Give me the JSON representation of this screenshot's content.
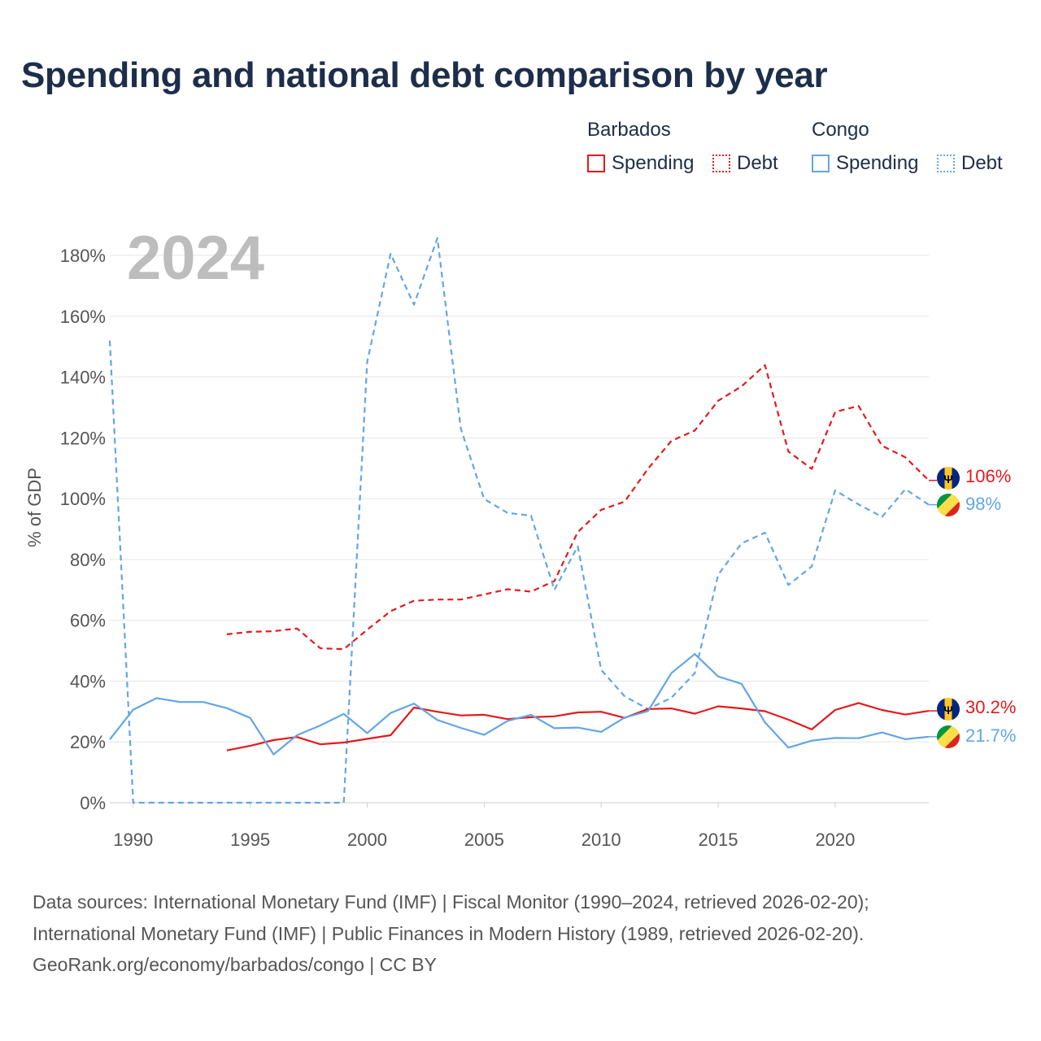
{
  "title": "Spending and national debt comparison by year",
  "year_watermark": "2024",
  "legend": {
    "groups": [
      {
        "country": "Barbados",
        "color": "#e31a1c",
        "items": [
          "Spending",
          "Debt"
        ]
      },
      {
        "country": "Congo",
        "color": "#62a6e6",
        "items": [
          "Spending",
          "Debt"
        ]
      }
    ]
  },
  "end_labels": {
    "barbados_debt": "106%",
    "congo_debt": "98%",
    "barbados_spending": "30.2%",
    "congo_spending": "21.7%"
  },
  "sources": [
    "Data sources: International Monetary Fund (IMF) | Fiscal Monitor (1990–2024, retrieved 2026-02-20);",
    "International Monetary Fund (IMF) | Public Finances in Modern History (1989, retrieved 2026-02-20).",
    "GeoRank.org/economy/barbados/congo | CC BY"
  ],
  "chart_data": {
    "type": "line",
    "title": "Spending and national debt comparison by year",
    "xlabel": "",
    "ylabel": "% of GDP",
    "xlim": [
      1989,
      2024
    ],
    "ylim": [
      0,
      180
    ],
    "x_ticks": [
      1990,
      1995,
      2000,
      2005,
      2010,
      2015,
      2020
    ],
    "y_ticks": [
      0,
      20,
      40,
      60,
      80,
      100,
      120,
      140,
      160,
      180
    ],
    "y_tick_labels": [
      "0%",
      "20%",
      "40%",
      "60%",
      "80%",
      "100%",
      "120%",
      "140%",
      "160%",
      "180%"
    ],
    "grid": true,
    "series": [
      {
        "name": "Barbados Debt",
        "country": "Barbados",
        "kind": "Debt",
        "color": "#e31a1c",
        "dashed": true,
        "x": [
          1994,
          1995,
          1996,
          1997,
          1998,
          1999,
          2000,
          2001,
          2002,
          2003,
          2004,
          2005,
          2006,
          2007,
          2008,
          2009,
          2010,
          2011,
          2012,
          2013,
          2014,
          2015,
          2016,
          2017,
          2018,
          2019,
          2020,
          2021,
          2022,
          2023,
          2024
        ],
        "values": [
          55.4,
          56.2,
          56.4,
          57.3,
          50.8,
          50.5,
          56.9,
          63.0,
          66.4,
          66.8,
          66.8,
          68.5,
          70.2,
          69.4,
          72.9,
          89.0,
          96.3,
          99.0,
          109.8,
          119.0,
          122.4,
          132.2,
          136.9,
          143.9,
          115.5,
          109.8,
          128.5,
          130.5,
          117.4,
          113.6,
          106.0
        ]
      },
      {
        "name": "Congo Debt",
        "country": "Congo",
        "kind": "Debt",
        "color": "#62a6e6",
        "dashed": true,
        "x": [
          1989,
          1990,
          1991,
          1992,
          1993,
          1994,
          1995,
          1996,
          1997,
          1998,
          1999,
          2000,
          2001,
          2002,
          2003,
          2004,
          2005,
          2006,
          2007,
          2008,
          2009,
          2010,
          2011,
          2012,
          2013,
          2014,
          2015,
          2016,
          2017,
          2018,
          2019,
          2020,
          2021,
          2022,
          2023,
          2024
        ],
        "values": [
          152.0,
          0,
          0,
          0,
          0,
          0,
          0,
          0,
          0,
          0,
          0,
          145.0,
          180.5,
          163.8,
          185.7,
          123.0,
          99.9,
          95.3,
          94.4,
          70.0,
          84.3,
          43.7,
          35.0,
          30.8,
          34.5,
          42.6,
          75.0,
          85.3,
          88.8,
          71.6,
          77.7,
          102.7,
          98.1,
          94.0,
          103.1,
          98.0
        ]
      },
      {
        "name": "Barbados Spending",
        "country": "Barbados",
        "kind": "Spending",
        "color": "#e31a1c",
        "dashed": false,
        "x": [
          1994,
          1995,
          1996,
          1997,
          1998,
          1999,
          2000,
          2001,
          2002,
          2003,
          2004,
          2005,
          2006,
          2007,
          2008,
          2009,
          2010,
          2011,
          2012,
          2013,
          2014,
          2015,
          2016,
          2017,
          2018,
          2019,
          2020,
          2021,
          2022,
          2023,
          2024
        ],
        "values": [
          17.2,
          18.7,
          20.6,
          21.6,
          19.2,
          19.8,
          21.0,
          22.2,
          31.3,
          29.9,
          28.7,
          28.9,
          27.5,
          28.1,
          28.4,
          29.7,
          29.9,
          27.9,
          30.8,
          31.0,
          29.3,
          31.7,
          31.0,
          30.1,
          27.3,
          24.1,
          30.5,
          32.8,
          30.5,
          29.0,
          30.2
        ]
      },
      {
        "name": "Congo Spending",
        "country": "Congo",
        "kind": "Spending",
        "color": "#62a6e6",
        "dashed": false,
        "x": [
          1989,
          1990,
          1991,
          1992,
          1993,
          1994,
          1995,
          1996,
          1997,
          1998,
          1999,
          2000,
          2001,
          2002,
          2003,
          2004,
          2005,
          2006,
          2007,
          2008,
          2009,
          2010,
          2011,
          2012,
          2013,
          2014,
          2015,
          2016,
          2017,
          2018,
          2019,
          2020,
          2021,
          2022,
          2023,
          2024
        ],
        "values": [
          20.8,
          30.6,
          34.4,
          33.1,
          33.1,
          31.1,
          27.9,
          15.9,
          22.2,
          25.4,
          29.2,
          22.9,
          29.5,
          32.6,
          27.2,
          24.6,
          22.3,
          26.9,
          28.9,
          24.5,
          24.7,
          23.3,
          28.0,
          30.1,
          42.6,
          48.9,
          41.5,
          39.1,
          26.4,
          18.1,
          20.4,
          21.3,
          21.2,
          23.1,
          20.9,
          21.7
        ]
      }
    ]
  }
}
